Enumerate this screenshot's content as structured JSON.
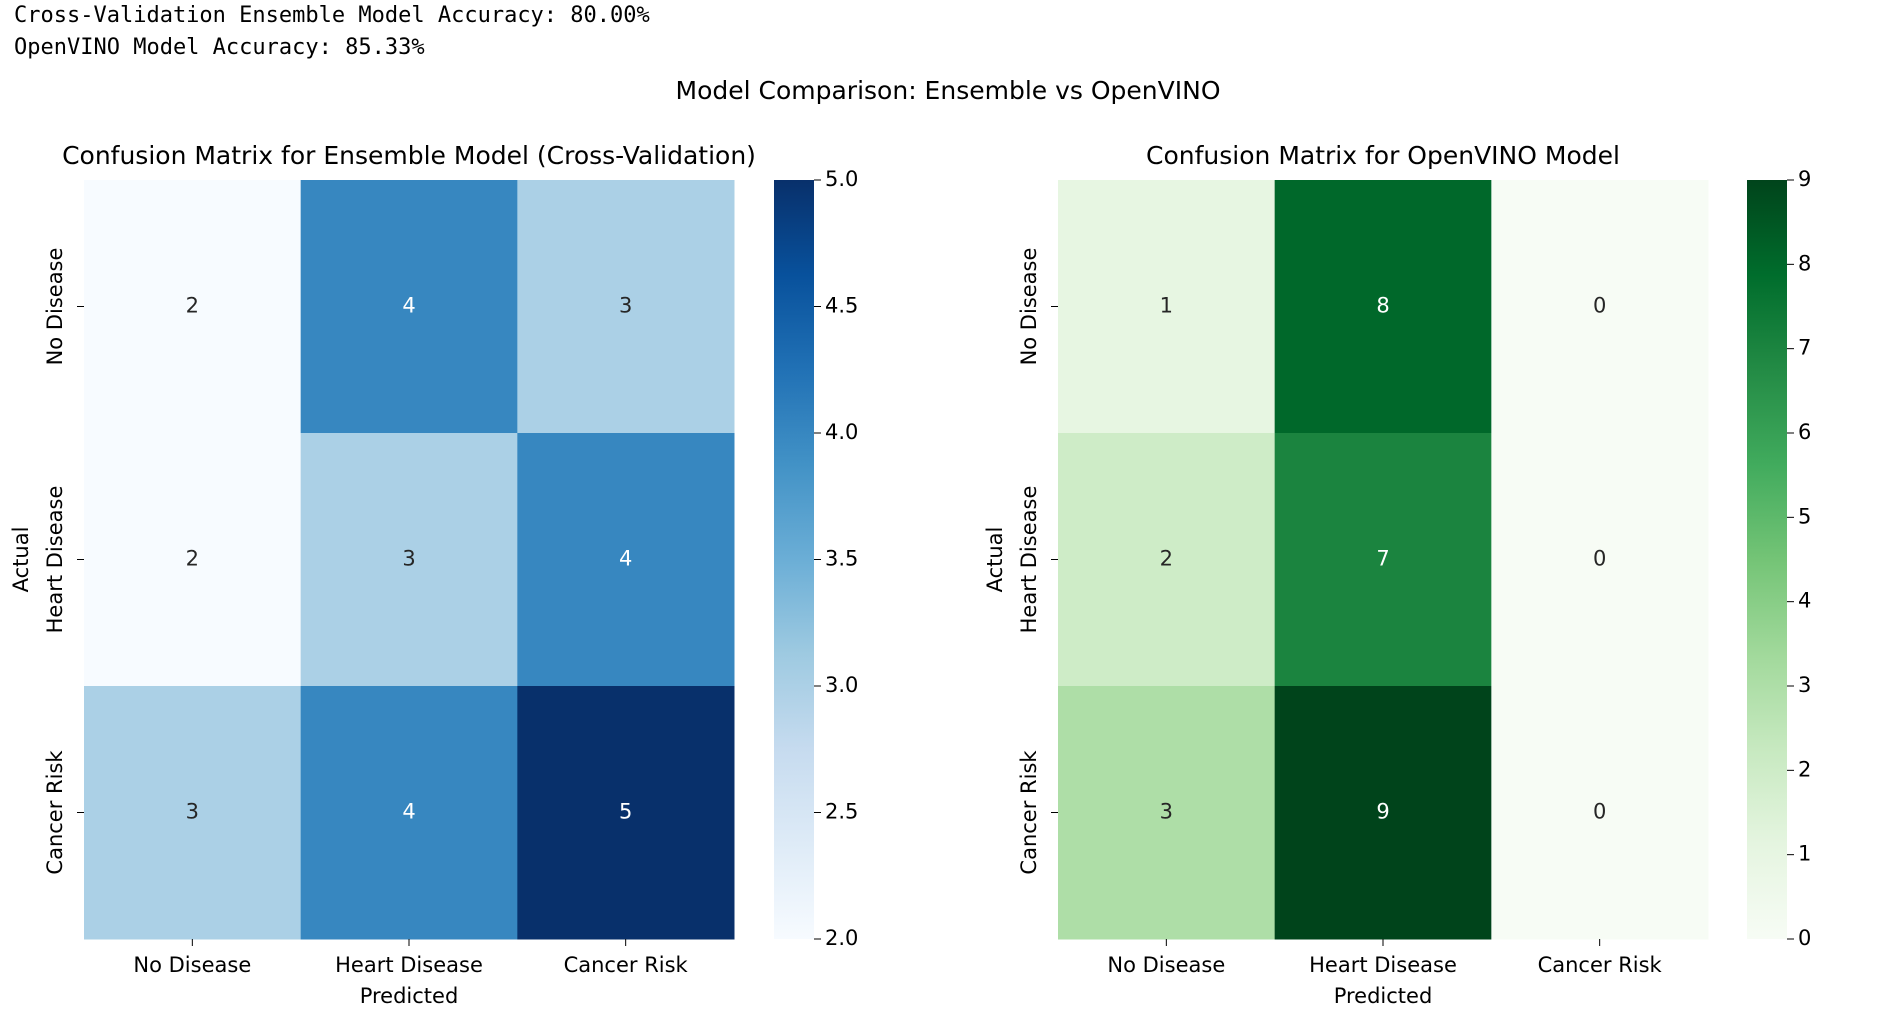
{
  "output_lines": [
    "Cross-Validation Ensemble Model Accuracy: 80.00%",
    "OpenVINO Model Accuracy: 85.33%"
  ],
  "suptitle": "Model Comparison: Ensemble vs OpenVINO",
  "chart_data": [
    {
      "type": "heatmap",
      "title": "Confusion Matrix for Ensemble Model (Cross-Validation)",
      "xlabel": "Predicted",
      "ylabel": "Actual",
      "x": [
        "No Disease",
        "Heart Disease",
        "Cancer Risk"
      ],
      "y": [
        "No Disease",
        "Heart Disease",
        "Cancer Risk"
      ],
      "values": [
        [
          2,
          4,
          3
        ],
        [
          2,
          3,
          4
        ],
        [
          3,
          4,
          5
        ]
      ],
      "clim": [
        2,
        5
      ],
      "cticks": [
        {
          "value": 2,
          "label": "2.0"
        },
        {
          "value": 2.5,
          "label": "2.5"
        },
        {
          "value": 3,
          "label": "3.0"
        },
        {
          "value": 3.5,
          "label": "3.5"
        },
        {
          "value": 4,
          "label": "4.0"
        },
        {
          "value": 4.5,
          "label": "4.5"
        },
        {
          "value": 5,
          "label": "5.0"
        }
      ],
      "colormap": [
        "#f7fbff",
        "#deebf7",
        "#c6dbef",
        "#9ecae1",
        "#6baed6",
        "#4292c6",
        "#2171b5",
        "#08519c",
        "#08306b"
      ]
    },
    {
      "type": "heatmap",
      "title": "Confusion Matrix for OpenVINO Model",
      "xlabel": "Predicted",
      "ylabel": "Actual",
      "x": [
        "No Disease",
        "Heart Disease",
        "Cancer Risk"
      ],
      "y": [
        "No Disease",
        "Heart Disease",
        "Cancer Risk"
      ],
      "values": [
        [
          1,
          8,
          0
        ],
        [
          2,
          7,
          0
        ],
        [
          3,
          9,
          0
        ]
      ],
      "clim": [
        0,
        9
      ],
      "cticks": [
        0,
        1,
        2,
        3,
        4,
        5,
        6,
        7,
        8,
        9
      ],
      "colormap": [
        "#f7fcf5",
        "#e5f5e0",
        "#c7e9c0",
        "#a1d99b",
        "#74c476",
        "#41ab5d",
        "#238b45",
        "#006d2c",
        "#00441b"
      ]
    }
  ]
}
